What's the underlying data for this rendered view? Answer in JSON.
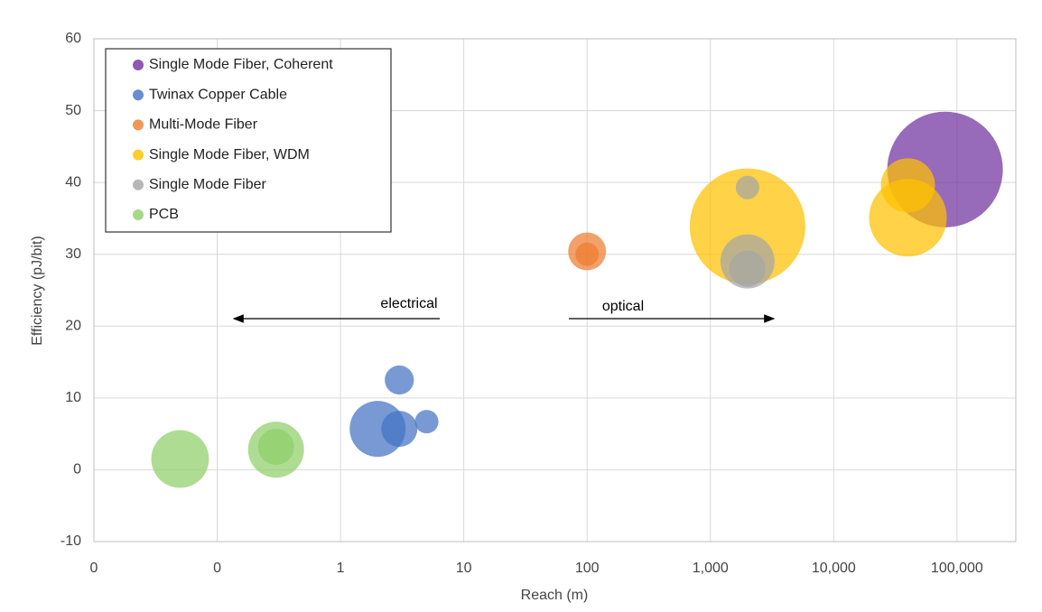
{
  "chart_data": {
    "type": "bubble",
    "xlabel": "Reach (m)",
    "ylabel": "Efficiency (pJ/bit)",
    "xscale": "log",
    "xlim": [
      0.01,
      300000
    ],
    "xticks": [
      {
        "value": 0.01,
        "label": "0"
      },
      {
        "value": 0.1,
        "label": "0"
      },
      1,
      10,
      100,
      {
        "value": 1000,
        "label": "1,000"
      },
      {
        "value": 10000,
        "label": "10,000"
      },
      {
        "value": 100000,
        "label": "100,000"
      }
    ],
    "ylim": [
      -10,
      60
    ],
    "yticks": [
      -10,
      0,
      10,
      20,
      30,
      40,
      50,
      60
    ],
    "grid": true,
    "legend": "upper left",
    "annotations": [
      "electrical",
      "optical"
    ],
    "series": [
      {
        "name": "Single Mode Fiber, Coherent",
        "color": "#7030a0",
        "x": [
          80000
        ],
        "values": [
          41.8
        ],
        "sizes": [
          41
        ]
      },
      {
        "name": "Twinax Copper Cable",
        "color": "#4472c4",
        "x": [
          2,
          3,
          3,
          5
        ],
        "values": [
          5.7,
          12.5,
          5.7,
          6.7
        ],
        "sizes": [
          9.6,
          2.6,
          4,
          1.7
        ]
      },
      {
        "name": "Multi-Mode Fiber",
        "color": "#ed7d31",
        "x": [
          100,
          100
        ],
        "values": [
          30.4,
          30
        ],
        "sizes": [
          4.4,
          1.7
        ]
      },
      {
        "name": "Single Mode Fiber, WDM",
        "color": "#ffc000",
        "x": [
          2000,
          40000,
          40000
        ],
        "values": [
          33.9,
          35.1,
          39.6
        ],
        "sizes": [
          41,
          18.5,
          9
        ]
      },
      {
        "name": "Single Mode Fiber",
        "color": "#a5a5a5",
        "x": [
          2000,
          2000,
          2000
        ],
        "values": [
          39.3,
          29,
          28
        ],
        "sizes": [
          1.7,
          9,
          4
        ]
      },
      {
        "name": "PCB",
        "color": "#8fcf6a",
        "x": [
          0.05,
          0.3,
          0.3
        ],
        "values": [
          1.5,
          2.8,
          3.2
        ],
        "sizes": [
          10.2,
          9.6,
          4
        ]
      }
    ]
  }
}
